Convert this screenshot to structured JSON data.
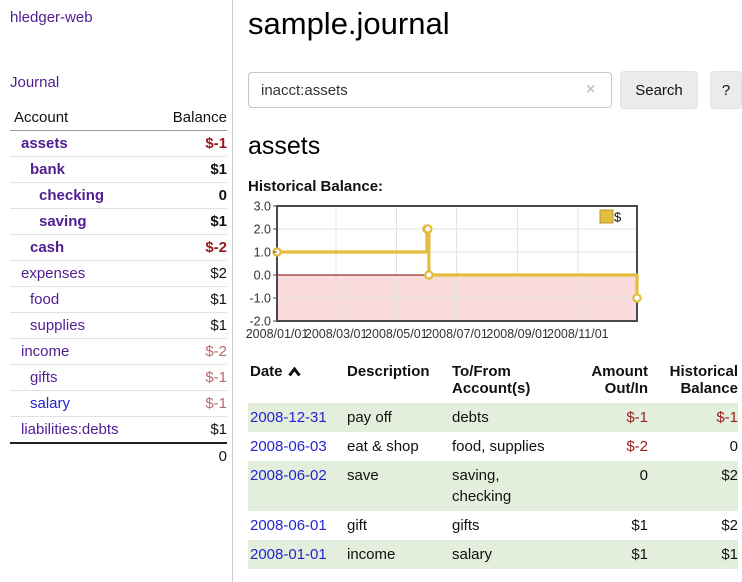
{
  "colors": {
    "link_purple": "#511d93",
    "link_blue": "#2424cf",
    "negative_strong": "#9a1b1b",
    "negative_soft": "#b76c6c",
    "row_stripe_green": "#e3efdc",
    "chart_line_gold": "#e4bd3e"
  },
  "sidebar": {
    "brand": "hledger-web",
    "journal_link": "Journal",
    "accounts_table": {
      "account_header": "Account",
      "balance_header": "Balance",
      "rows": [
        {
          "name": "assets",
          "indent": 1,
          "bold": true,
          "link_color": "purple",
          "balance": "$-1",
          "balance_tone": "neg"
        },
        {
          "name": "bank",
          "indent": 2,
          "bold": true,
          "link_color": "purple",
          "balance": "$1",
          "balance_tone": "plain"
        },
        {
          "name": "checking",
          "indent": 3,
          "bold": true,
          "link_color": "purple",
          "balance": "0",
          "balance_tone": "plain"
        },
        {
          "name": "saving",
          "indent": 3,
          "bold": true,
          "link_color": "purple",
          "balance": "$1",
          "balance_tone": "plain"
        },
        {
          "name": "cash",
          "indent": 2,
          "bold": true,
          "link_color": "purple",
          "balance": "$-2",
          "balance_tone": "neg"
        },
        {
          "name": "expenses",
          "indent": 1,
          "bold": false,
          "link_color": "purple",
          "balance": "$2",
          "balance_tone": "plain"
        },
        {
          "name": "food",
          "indent": 2,
          "bold": false,
          "link_color": "purple",
          "balance": "$1",
          "balance_tone": "plain"
        },
        {
          "name": "supplies",
          "indent": 2,
          "bold": false,
          "link_color": "purple",
          "balance": "$1",
          "balance_tone": "plain"
        },
        {
          "name": "income",
          "indent": 1,
          "bold": false,
          "link_color": "purple",
          "balance": "$-2",
          "balance_tone": "soft"
        },
        {
          "name": "gifts",
          "indent": 2,
          "bold": false,
          "link_color": "purple",
          "balance": "$-1",
          "balance_tone": "soft"
        },
        {
          "name": "salary",
          "indent": 2,
          "bold": false,
          "link_color": "blue",
          "balance": "$-1",
          "balance_tone": "soft"
        },
        {
          "name": "liabilities:debts",
          "indent": 1,
          "bold": false,
          "link_color": "purple",
          "balance": "$1",
          "balance_tone": "plain"
        }
      ],
      "total": "0"
    }
  },
  "header": {
    "title": "sample.journal"
  },
  "search": {
    "value": "inacct:assets",
    "clear_icon": "×",
    "search_button": "Search",
    "help_button": "?"
  },
  "account_page": {
    "title": "assets",
    "chart_label": "Historical Balance:"
  },
  "chart_data": {
    "type": "line",
    "title": "Historical Balance:",
    "legend": [
      {
        "label": "$",
        "color": "#e4bd3e",
        "position": "top-right"
      }
    ],
    "ylim": [
      -2,
      3
    ],
    "y_ticks": [
      "3.0",
      "2.0",
      "1.0",
      "0.0",
      "-1.0",
      "-2.0"
    ],
    "y_tick_values": [
      3,
      2,
      1,
      0,
      -1,
      -2
    ],
    "x_ticks": [
      "2008/01/01",
      "2008/03/01",
      "2008/05/01",
      "2008/07/01",
      "2008/09/01",
      "2008/11/01"
    ],
    "x_tick_days": [
      0,
      60,
      121,
      182,
      244,
      305
    ],
    "x_range_days": 365,
    "grid": true,
    "line_style": "step-after",
    "line_color": "#e4bd3e",
    "marker": "open-circle",
    "zero_line_color": "#8b0000",
    "negative_region_color": "#fbdcdc",
    "series": [
      {
        "name": "$",
        "points": [
          {
            "date": "2008-01-01",
            "day": 0,
            "value": 1
          },
          {
            "date": "2008-06-01",
            "day": 152,
            "value": 2
          },
          {
            "date": "2008-06-02",
            "day": 153,
            "value": 2
          },
          {
            "date": "2008-06-03",
            "day": 154,
            "value": 0
          },
          {
            "date": "2008-12-31",
            "day": 365,
            "value": -1
          }
        ]
      }
    ]
  },
  "register": {
    "headers": {
      "date": "Date",
      "description": "Description",
      "accounts": "To/From Account(s)",
      "amount": "Amount Out/In",
      "balance": "Historical Balance"
    },
    "sort": {
      "column": "date",
      "direction": "ascending"
    },
    "rows": [
      {
        "date": "2008-12-31",
        "description": "pay off",
        "accounts": "debts",
        "amount": "$-1",
        "balance": "$-1"
      },
      {
        "date": "2008-06-03",
        "description": "eat & shop",
        "accounts": "food, supplies",
        "amount": "$-2",
        "balance": "0"
      },
      {
        "date": "2008-06-02",
        "description": "save",
        "accounts": "saving, checking",
        "amount": "0",
        "balance": "$2"
      },
      {
        "date": "2008-06-01",
        "description": "gift",
        "accounts": "gifts",
        "amount": "$1",
        "balance": "$2"
      },
      {
        "date": "2008-01-01",
        "description": "income",
        "accounts": "salary",
        "amount": "$1",
        "balance": "$1"
      }
    ]
  }
}
